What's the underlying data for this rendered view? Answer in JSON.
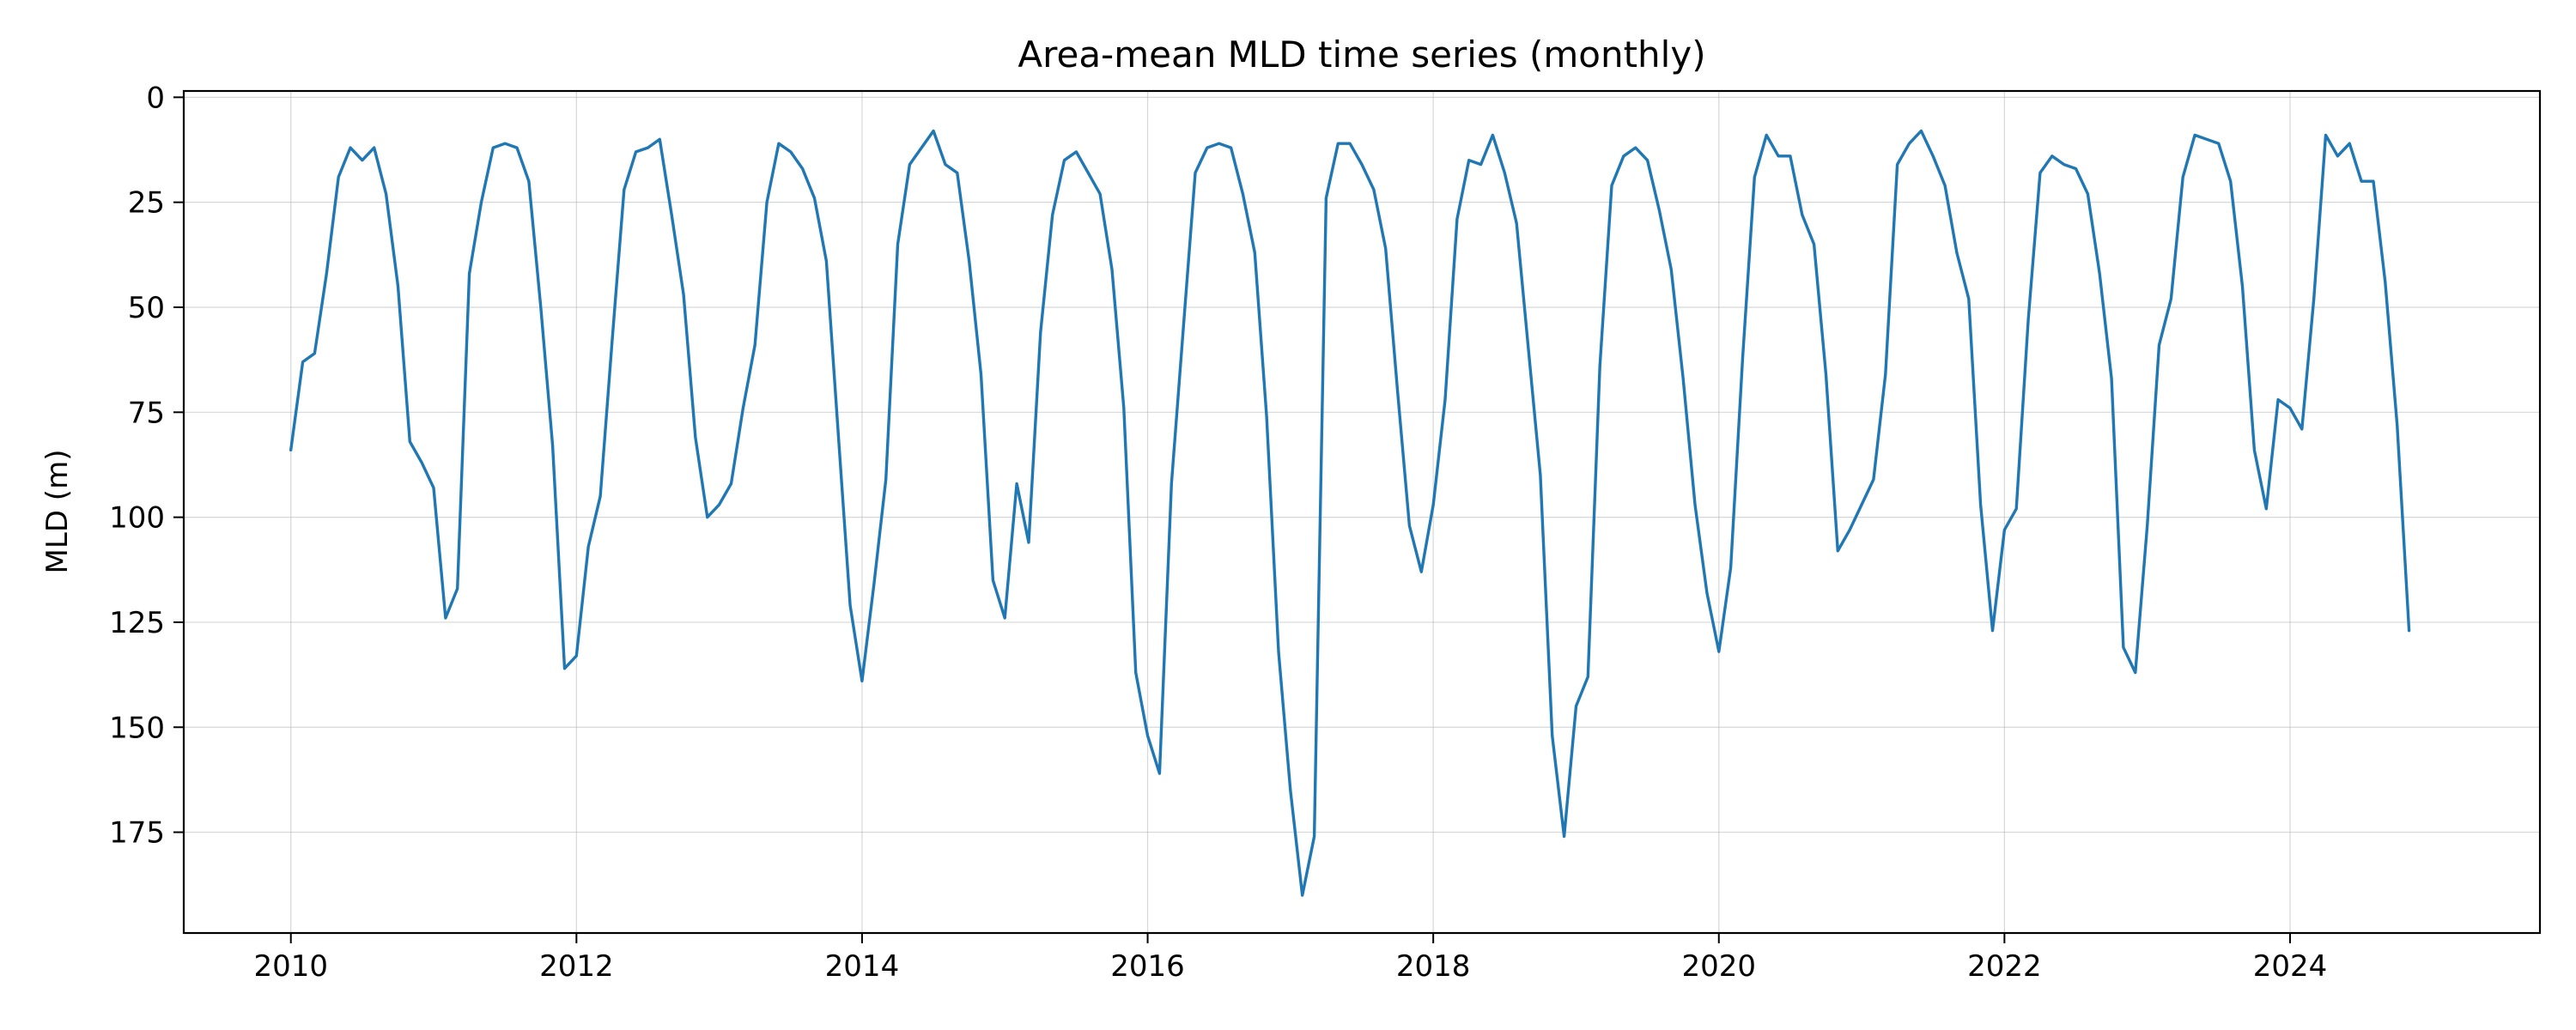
{
  "chart_data": {
    "type": "line",
    "title": "Area-mean MLD time series (monthly)",
    "xlabel": "",
    "ylabel": "MLD (m)",
    "x_ticks": [
      2010,
      2012,
      2014,
      2016,
      2018,
      2020,
      2022,
      2024
    ],
    "y_ticks": [
      0,
      25,
      50,
      75,
      100,
      125,
      150,
      175
    ],
    "xlim": [
      2009.25,
      2025.75
    ],
    "ylim": [
      199,
      -1.5
    ],
    "y_inverted": true,
    "grid": true,
    "color": "#1f77b4",
    "x_start": "2010-01",
    "x_step": "monthly",
    "series": [
      {
        "values": [
          84,
          63,
          61,
          42,
          19,
          12,
          15,
          12,
          23,
          45,
          82,
          87,
          93,
          124,
          117,
          42,
          25,
          12,
          11,
          12,
          20,
          50,
          83,
          136,
          133,
          107,
          95,
          58,
          22,
          13,
          12,
          10,
          28,
          47,
          81,
          100,
          97,
          92,
          74,
          59,
          25,
          11,
          13,
          17,
          24,
          39,
          80,
          121,
          139,
          116,
          91,
          35,
          16,
          12,
          8,
          16,
          18,
          39,
          66,
          115,
          124,
          92,
          106,
          56,
          28,
          15,
          13,
          18,
          23,
          41,
          74,
          137,
          152,
          161,
          92,
          55,
          18,
          12,
          11,
          12,
          23,
          37,
          76,
          132,
          165,
          190,
          176,
          24,
          11,
          11,
          16,
          22,
          36,
          70,
          102,
          113,
          97,
          72,
          29,
          15,
          16,
          9,
          18,
          30,
          60,
          90,
          152,
          176,
          145,
          138,
          64,
          21,
          14,
          12,
          15,
          27,
          41,
          67,
          97,
          118,
          132,
          112,
          62,
          19,
          9,
          14,
          14,
          28,
          35,
          66,
          108,
          103,
          97,
          91,
          66,
          16,
          11,
          8,
          14,
          21,
          37,
          48,
          97,
          127,
          103,
          98,
          53,
          18,
          14,
          16,
          17,
          23,
          42,
          67,
          131,
          137,
          102,
          59,
          48,
          19,
          9,
          10,
          11,
          20,
          45,
          84,
          98,
          72,
          74,
          79,
          48,
          9,
          14,
          11,
          20,
          20,
          44,
          78,
          127
        ]
      }
    ]
  }
}
